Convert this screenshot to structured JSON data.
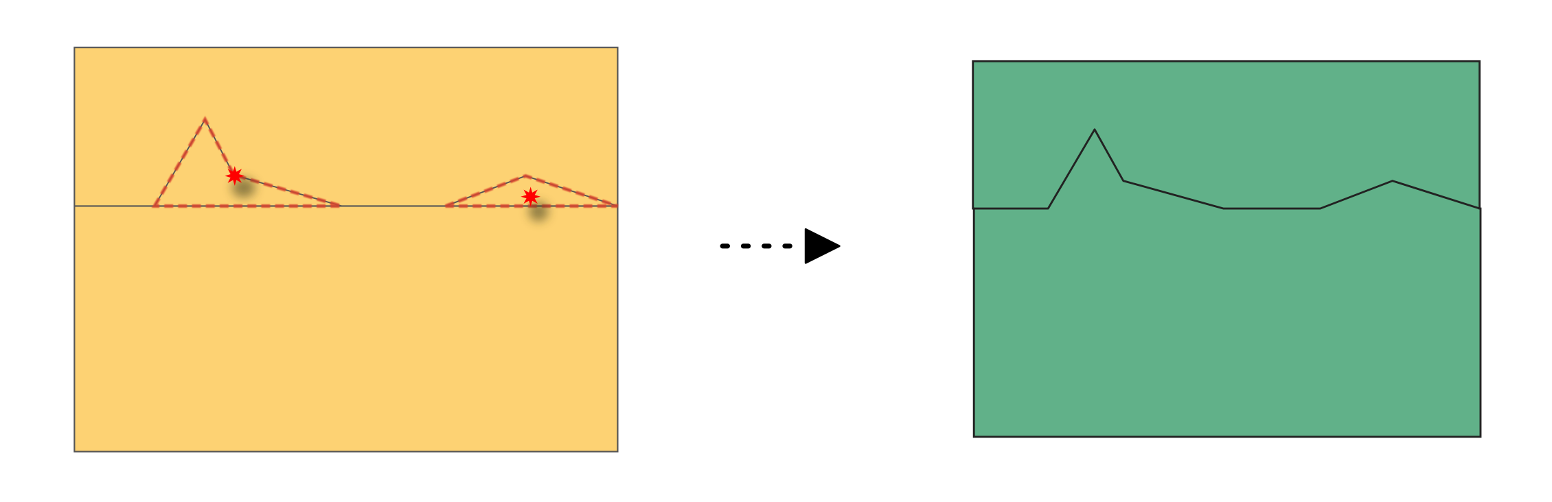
{
  "colors": {
    "before_fill": "#fdd273",
    "after_fill": "#61b189",
    "outline": "#555555",
    "after_outline": "#222222",
    "dashed_highlight": "#d9442e",
    "star": "#ff0000",
    "arrow": "#000000"
  },
  "icons": {
    "marker": "star-burst-icon",
    "arrow": "dotted-arrow-right-icon"
  }
}
